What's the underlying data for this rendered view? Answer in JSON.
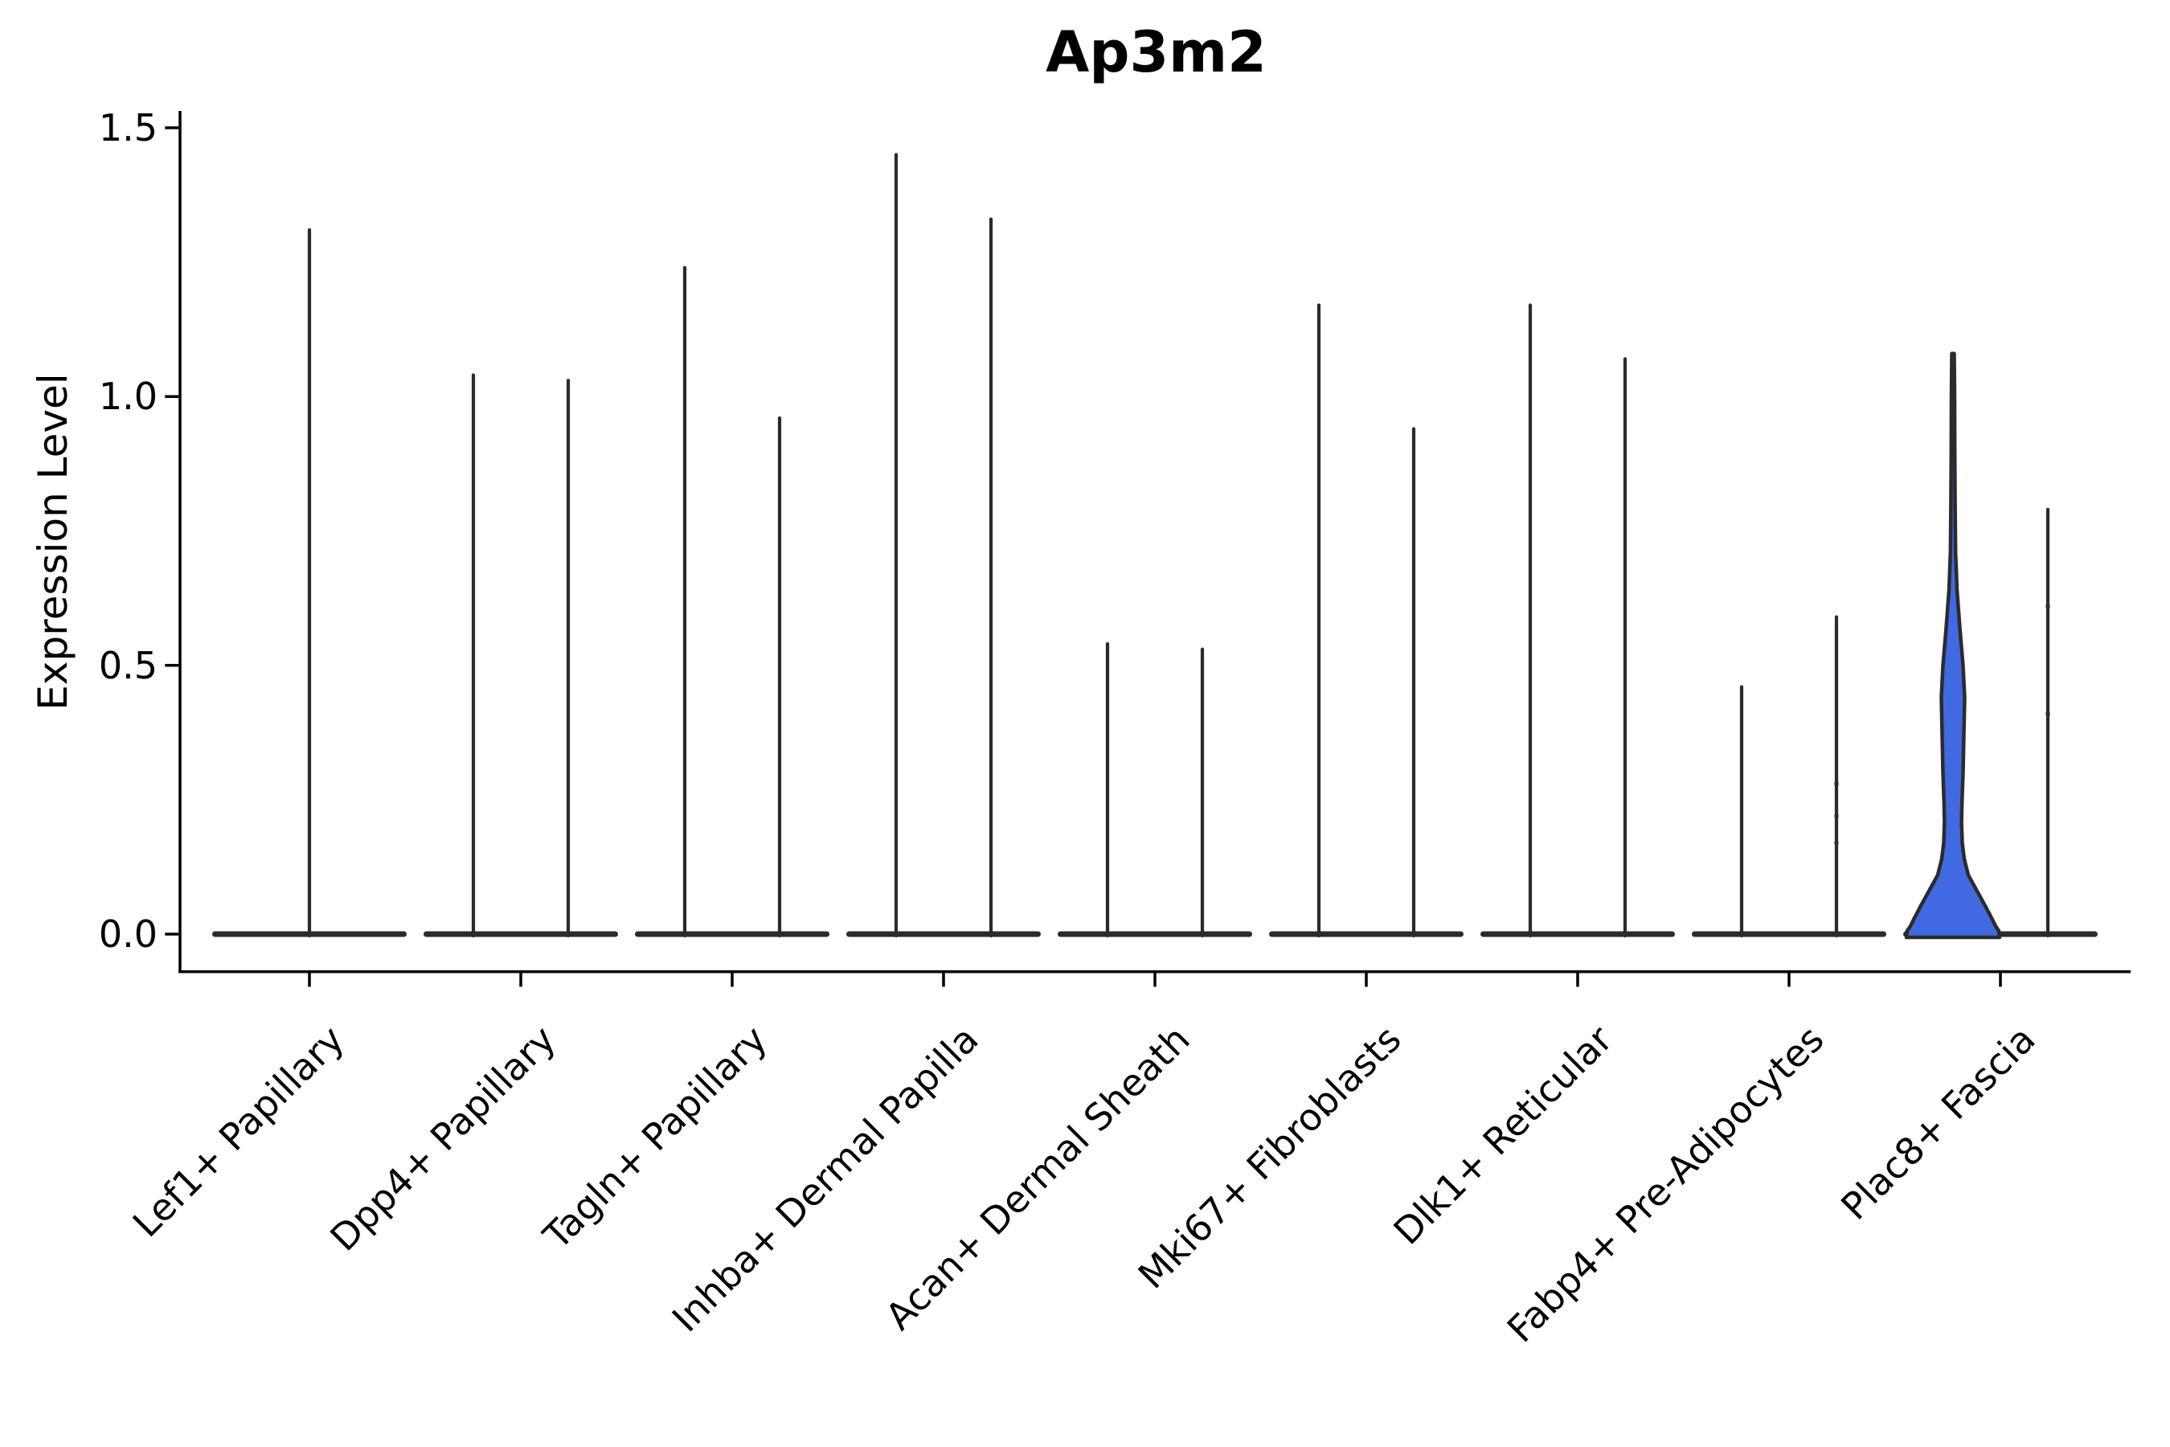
{
  "figure": {
    "title": "Ap3m2"
  },
  "chart_data": {
    "type": "violin",
    "title": "Ap3m2",
    "xlabel": "",
    "ylabel": "Expression Level",
    "ylim": [
      0,
      1.55
    ],
    "y_ticks_values": [
      1.5,
      1.0,
      0.5,
      0.0
    ],
    "y_tick_labels": [
      "1.5",
      "1.0",
      "0.5",
      "0.0"
    ],
    "grid": false,
    "legend": null,
    "background": "#ffffff",
    "colors": {
      "violin_outline": "#2b2b2b",
      "highlight_fill": "#4169E1",
      "axis": "#000000",
      "text": "#000000"
    },
    "description": "Violin plot of Ap3m2 expression per fibroblast cell-type cluster. Each category shows narrow paired violins: nearly all cells at expression 0 (flat base) with thin density spikes reaching the listed maxima. The left violin of Plac8+ Fascia is filled blue with substantial non-zero density.",
    "categories": [
      {
        "label": "Lef1+ Papillary",
        "violins": [
          {
            "slot": "center",
            "max": 1.31
          }
        ]
      },
      {
        "label": "Dpp4+ Papillary",
        "violins": [
          {
            "slot": "left",
            "max": 1.04
          },
          {
            "slot": "right",
            "max": 1.03
          }
        ]
      },
      {
        "label": "Tagln+ Papillary",
        "violins": [
          {
            "slot": "left",
            "max": 1.24
          },
          {
            "slot": "right",
            "max": 0.96
          }
        ]
      },
      {
        "label": "Inhba+ Dermal Papilla",
        "violins": [
          {
            "slot": "left",
            "max": 1.45
          },
          {
            "slot": "right",
            "max": 1.33
          }
        ]
      },
      {
        "label": "Acan+ Dermal Sheath",
        "violins": [
          {
            "slot": "left",
            "max": 0.54
          },
          {
            "slot": "right",
            "max": 0.53
          }
        ]
      },
      {
        "label": "Mki67+ Fibroblasts",
        "violins": [
          {
            "slot": "left",
            "max": 1.17
          },
          {
            "slot": "right",
            "max": 0.94
          }
        ]
      },
      {
        "label": "Dlk1+ Reticular",
        "violins": [
          {
            "slot": "left",
            "max": 1.17
          },
          {
            "slot": "right",
            "max": 1.07
          }
        ]
      },
      {
        "label": "Fabp4+ Pre-Adipocytes",
        "violins": [
          {
            "slot": "left",
            "max": 0.46
          },
          {
            "slot": "right",
            "max": 0.59,
            "dots": [
              0.28,
              0.22,
              0.17
            ]
          }
        ]
      },
      {
        "label": "Plac8+ Fascia",
        "violins": [
          {
            "slot": "left",
            "max": 1.08,
            "filled": true,
            "fill_color": "#4169E1",
            "width_profile": [
              [
                1.08,
                1.5
              ],
              [
                1.0,
                2.0
              ],
              [
                0.9,
                2.2
              ],
              [
                0.8,
                2.6
              ],
              [
                0.71,
                3.2
              ],
              [
                0.64,
                5.0
              ],
              [
                0.57,
                8.5
              ],
              [
                0.5,
                12.5
              ],
              [
                0.44,
                14.5
              ],
              [
                0.37,
                13.5
              ],
              [
                0.3,
                12.5
              ],
              [
                0.25,
                11.3
              ],
              [
                0.21,
                10.6
              ],
              [
                0.17,
                11.5
              ],
              [
                0.14,
                14.0
              ],
              [
                0.11,
                19.0
              ],
              [
                0.08,
                30.0
              ],
              [
                0.05,
                41.0
              ],
              [
                0.03,
                48.0
              ],
              [
                0.015,
                53.0
              ],
              [
                0.006,
                57.0
              ],
              [
                -0.006,
                58.0
              ]
            ]
          },
          {
            "slot": "right",
            "max": 0.79,
            "dots": [
              0.61,
              0.41
            ]
          }
        ]
      }
    ]
  }
}
